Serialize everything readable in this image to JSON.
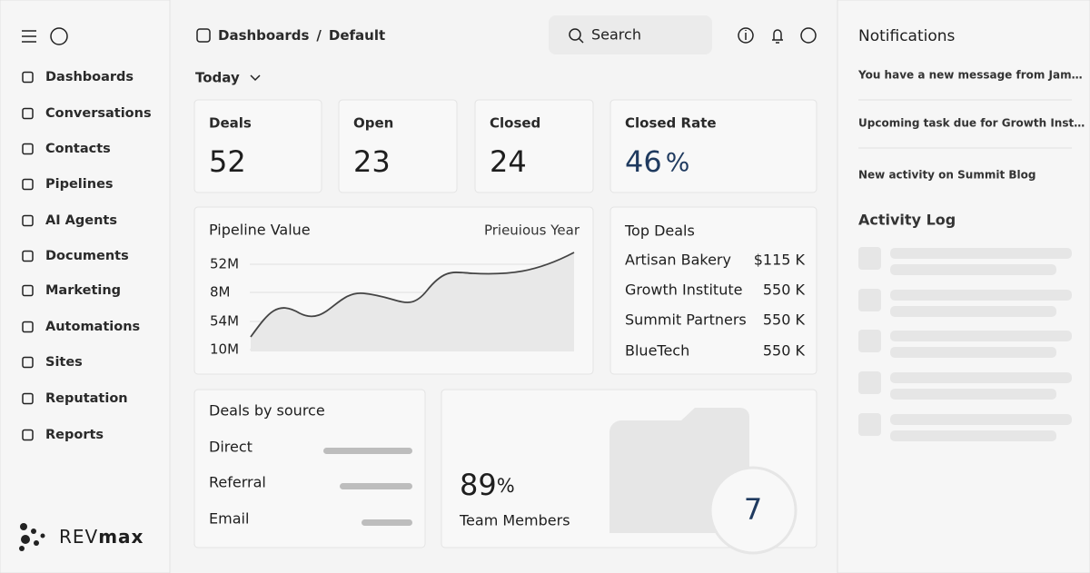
{
  "sidebar": {
    "nav": [
      "Dashboards",
      "Conversations",
      "Contacts",
      "Pipelines",
      "AI Agents",
      "Documents",
      "Marketing",
      "Automations",
      "Sites",
      "Reputation",
      "Reports"
    ],
    "brand": {
      "light": "REV",
      "bold": "max"
    }
  },
  "header": {
    "breadcrumb": [
      "Dashboards",
      "/",
      "Default"
    ],
    "search": "Search",
    "period": "Today"
  },
  "stats": [
    {
      "label": "Deals",
      "value": "52"
    },
    {
      "label": "Open",
      "value": "23"
    },
    {
      "label": "Closed",
      "value": "24"
    },
    {
      "label": "Closed Rate",
      "value": "46",
      "unit": "%"
    }
  ],
  "pipeline": {
    "title": "Pipeline Value",
    "toggle": "Prieuious Year",
    "axis_labels": [
      "52M",
      "8M",
      "54M",
      "10M"
    ]
  },
  "top_deals": {
    "title": "Top Deals",
    "rows": [
      [
        "Artisan Bakery",
        "$115 K"
      ],
      [
        "Growth Institute",
        "550 K"
      ],
      [
        "Summit Partners",
        "550 K"
      ],
      [
        "BlueTech",
        "550 K"
      ]
    ]
  },
  "deals_by_source": {
    "title": "Deals by source",
    "rows": [
      "Direct",
      "Referral",
      "Email"
    ]
  },
  "team": {
    "value": "89",
    "unit": "%",
    "label": "Team Members",
    "count": "7"
  },
  "notifications": {
    "title": "Notifications",
    "items": [
      "You have a new message from Jam…",
      "Upcoming task due for Growth Inst…",
      "New activity on Summit Blog"
    ]
  },
  "activity": {
    "title": "Activity Log"
  }
}
